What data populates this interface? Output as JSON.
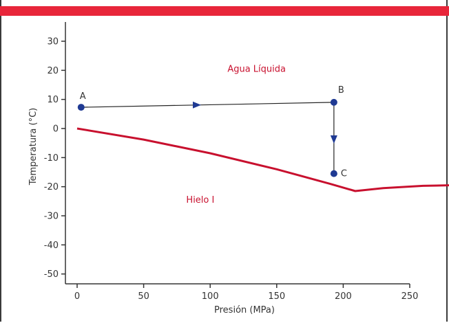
{
  "chart_data": {
    "type": "line",
    "title": "",
    "xlabel": "Presión  (MPa)",
    "ylabel": "Temperatura (°C)",
    "xlim": [
      -5,
      280
    ],
    "ylim": [
      -53,
      35
    ],
    "xticks": [
      0,
      50,
      100,
      150,
      200,
      250
    ],
    "yticks": [
      30,
      20,
      10,
      0,
      -10,
      -20,
      -30,
      -40,
      -50
    ],
    "xtick_labels": [
      "0",
      "50",
      "100",
      "150",
      "200",
      "250"
    ],
    "ytick_labels": [
      "30",
      "20",
      "10",
      "0",
      "-10",
      "-20",
      "-30",
      "-40",
      "-50"
    ],
    "grid": false,
    "series": [
      {
        "type": "line",
        "color": "#c8102e",
        "x": [
          0,
          50,
          100,
          150,
          190,
          209,
          230,
          260,
          280
        ],
        "y": [
          0,
          -3.8,
          -8.5,
          -14,
          -19,
          -21.5,
          -20.5,
          -19.7,
          -19.5
        ]
      },
      {
        "type": "path",
        "color": "#1f3a93",
        "x": [
          3,
          193,
          193
        ],
        "y": [
          7.3,
          9,
          -15.5
        ]
      }
    ],
    "points": [
      {
        "label": "A",
        "x": 3,
        "y": 7.3
      },
      {
        "label": "B",
        "x": 193,
        "y": 9
      },
      {
        "label": "C",
        "x": 193,
        "y": -15.5
      }
    ],
    "annotations": [
      {
        "text": "Agua Líquida",
        "x": 113,
        "y": 19.5,
        "color": "#c8102e"
      },
      {
        "text": "Hielo I",
        "x": 82,
        "y": -25.5,
        "color": "#c8102e"
      }
    ]
  },
  "style": {
    "top_bar_color": "#e8263a",
    "axis_color": "#333333",
    "curve_color": "#c8102e",
    "path_color": "#1f3a93",
    "label_color": "#c8102e"
  }
}
